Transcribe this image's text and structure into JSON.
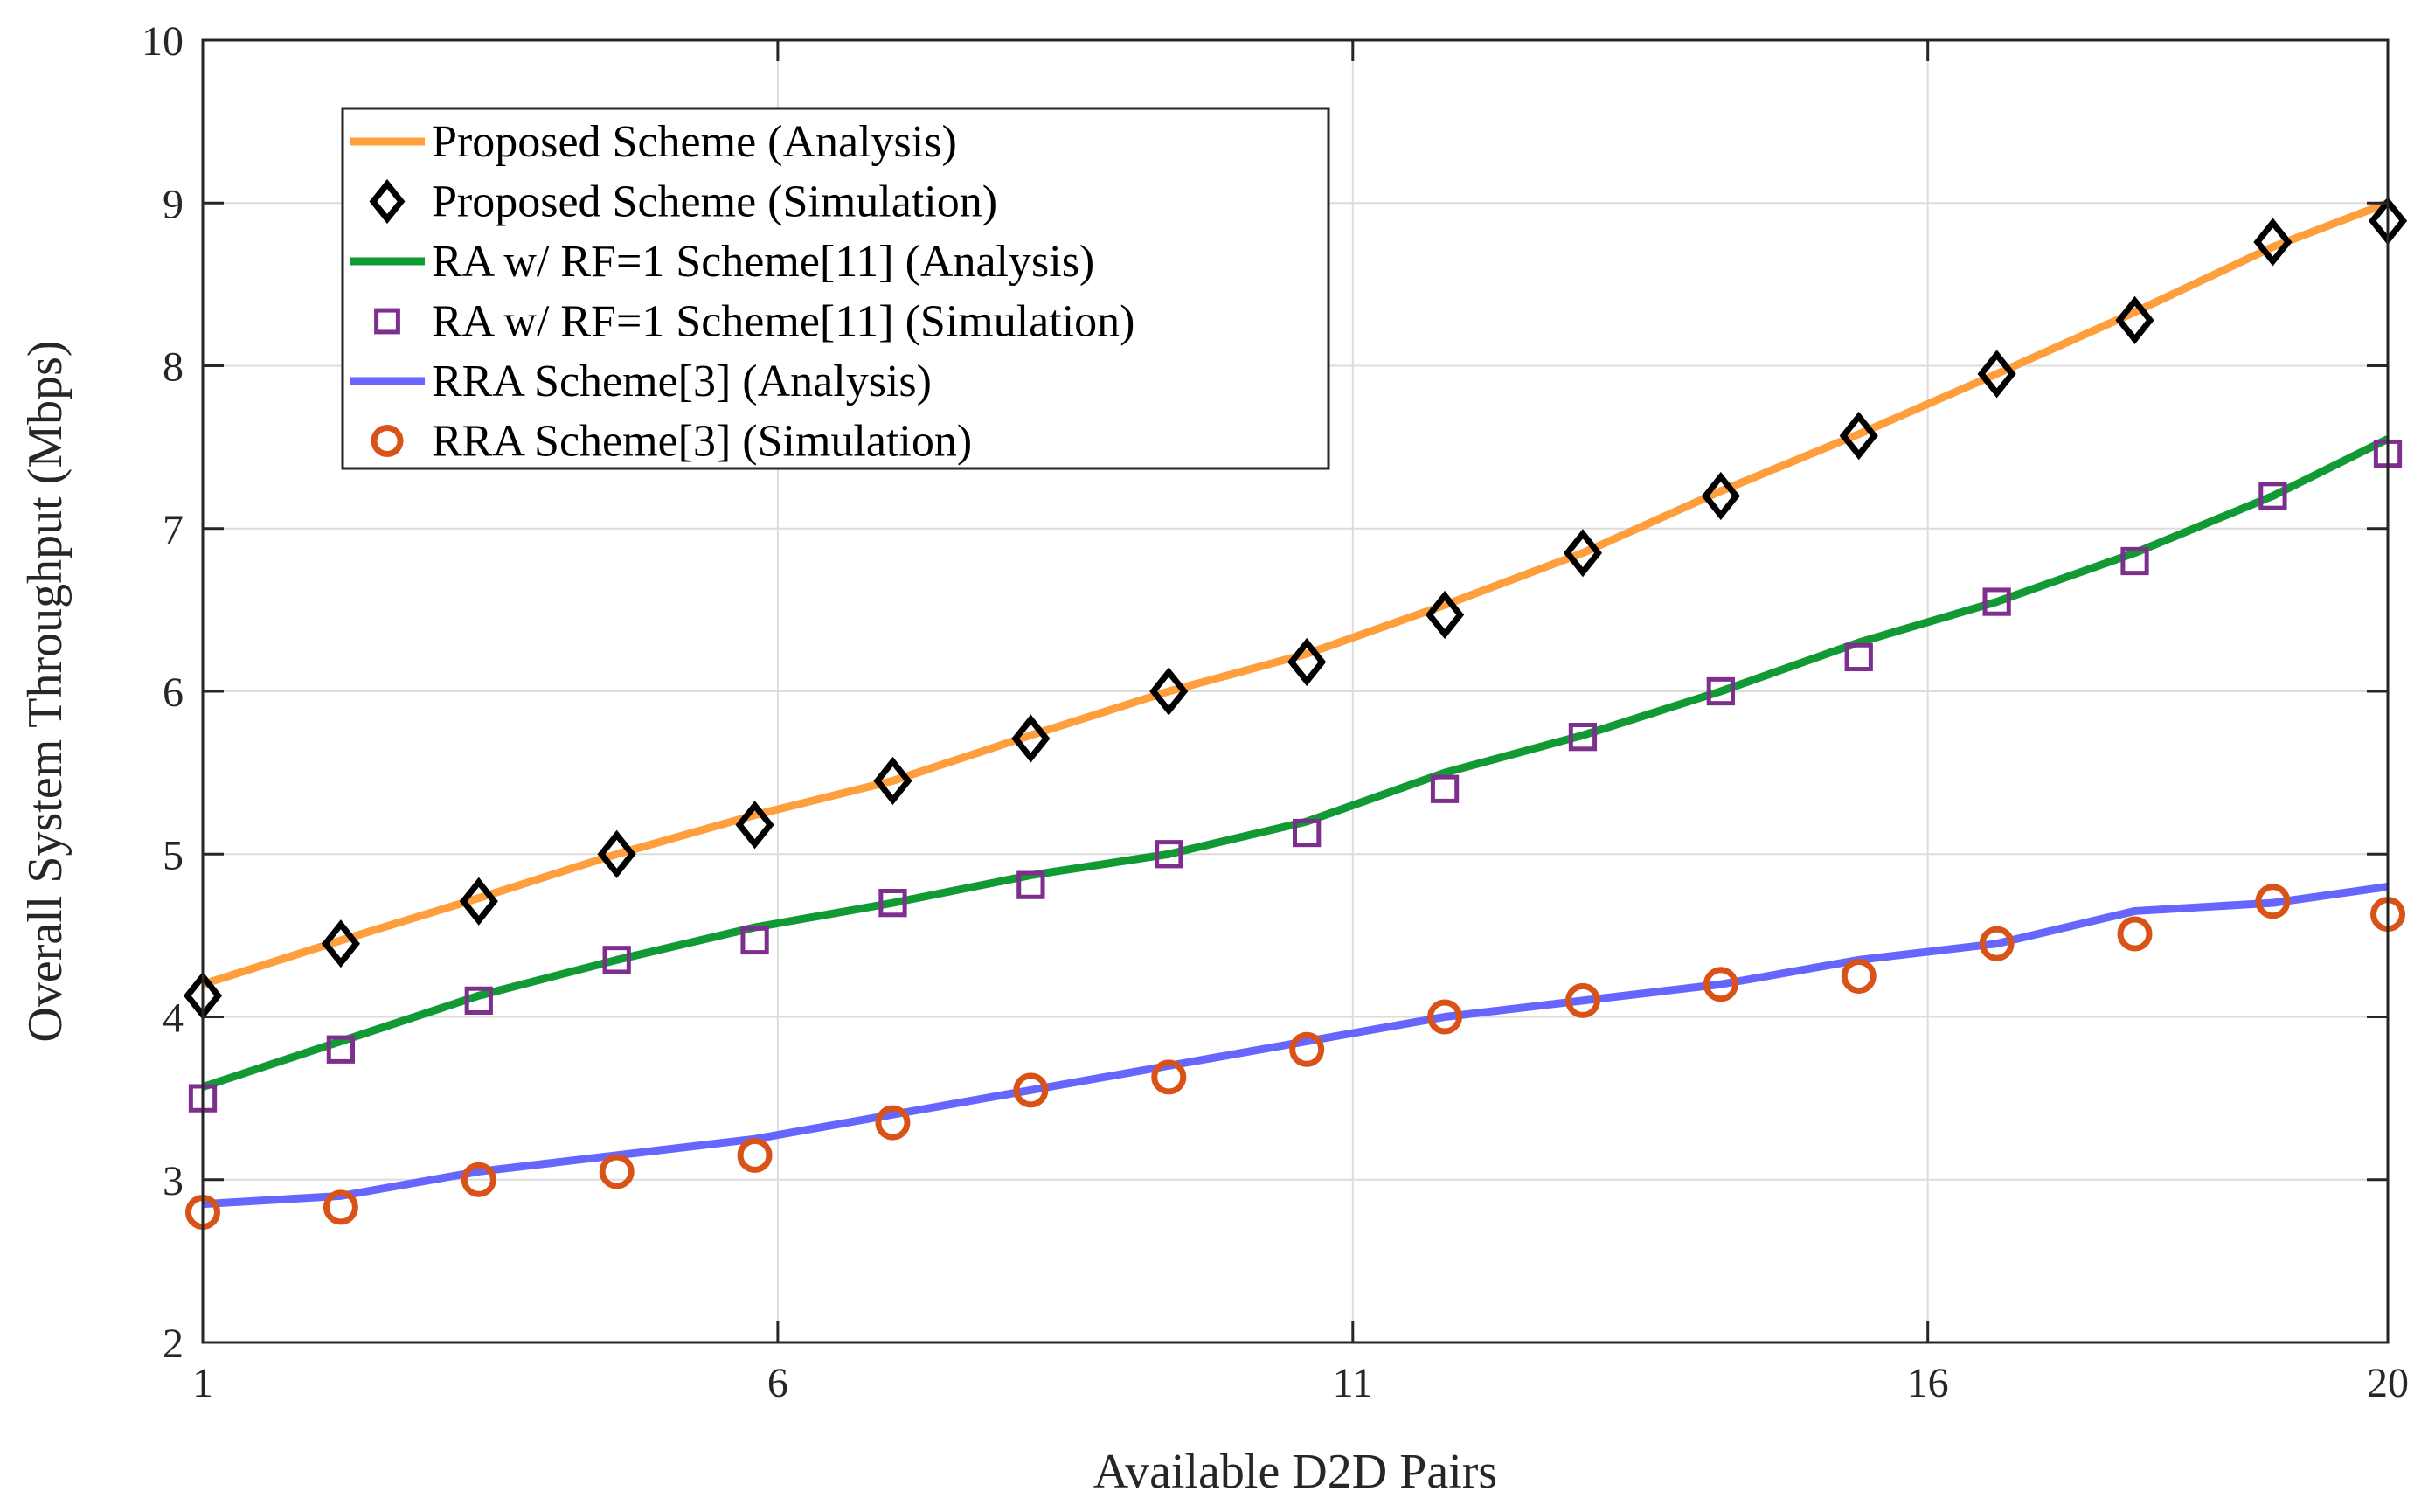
{
  "chart_data": {
    "type": "line",
    "title": "",
    "xlabel": "Available D2D Pairs",
    "ylabel": "Overall System Throughput (Mbps)",
    "xlim": [
      1,
      20
    ],
    "ylim": [
      2,
      10
    ],
    "xticks": [
      1,
      6,
      11,
      16,
      20
    ],
    "yticks": [
      2,
      3,
      4,
      5,
      6,
      7,
      8,
      9,
      10
    ],
    "grid": true,
    "legend_position": "top-left",
    "x": [
      1,
      2.2,
      3.4,
      4.6,
      5.8,
      7,
      8.2,
      9.4,
      10.6,
      11.8,
      13,
      14.2,
      15.4,
      16.6,
      17.8,
      19,
      20
    ],
    "series": [
      {
        "name": "Proposed Scheme (Analysis)",
        "style": "line",
        "color": "#FF9E3D",
        "values": [
          4.2,
          4.47,
          4.73,
          5.0,
          5.24,
          5.45,
          5.73,
          6.0,
          6.23,
          6.53,
          6.85,
          7.23,
          7.58,
          7.95,
          8.33,
          8.73,
          9.0
        ]
      },
      {
        "name": "Proposed Scheme (Simulation)",
        "style": "marker",
        "marker": "diamond",
        "color": "#000000",
        "values": [
          4.13,
          4.45,
          4.71,
          5.0,
          5.18,
          5.45,
          5.71,
          6.0,
          6.18,
          6.47,
          6.85,
          7.2,
          7.57,
          7.95,
          8.28,
          8.76,
          8.89
        ]
      },
      {
        "name": "RA w/ RF=1 Scheme[11] (Analysis)",
        "style": "line",
        "color": "#119933",
        "values": [
          3.57,
          3.85,
          4.13,
          4.35,
          4.55,
          4.7,
          4.87,
          5.0,
          5.2,
          5.5,
          5.73,
          6.0,
          6.3,
          6.55,
          6.85,
          7.2,
          7.55
        ]
      },
      {
        "name": "RA w/ RF=1 Scheme[11] (Simulation)",
        "style": "marker",
        "marker": "square",
        "color": "#7E2F8E",
        "values": [
          3.5,
          3.8,
          4.1,
          4.35,
          4.47,
          4.7,
          4.81,
          5.0,
          5.13,
          5.4,
          5.72,
          6.0,
          6.21,
          6.55,
          6.8,
          7.2,
          7.46
        ]
      },
      {
        "name": "RRA Scheme[3] (Analysis)",
        "style": "line",
        "color": "#6666FF",
        "values": [
          2.85,
          2.9,
          3.05,
          3.15,
          3.25,
          3.4,
          3.55,
          3.7,
          3.85,
          4.0,
          4.1,
          4.2,
          4.35,
          4.45,
          4.65,
          4.7,
          4.8
        ]
      },
      {
        "name": "RRA Scheme[3] (Simulation)",
        "style": "marker",
        "marker": "circle",
        "color": "#D95319",
        "values": [
          2.8,
          2.83,
          3.0,
          3.05,
          3.15,
          3.35,
          3.55,
          3.63,
          3.8,
          4.0,
          4.1,
          4.2,
          4.25,
          4.45,
          4.51,
          4.71,
          4.63
        ]
      }
    ]
  }
}
